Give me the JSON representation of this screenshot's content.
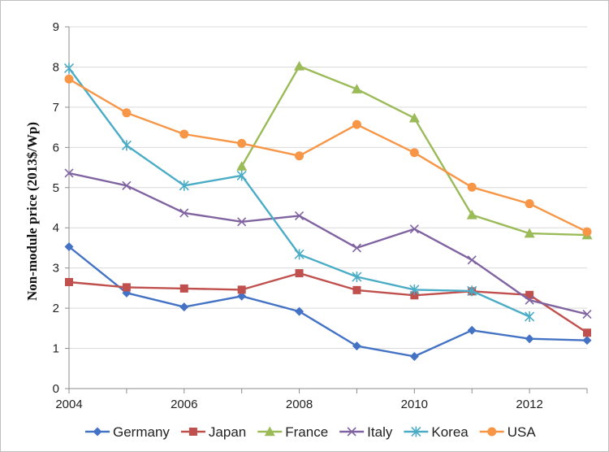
{
  "chart_data": {
    "type": "line",
    "title": "",
    "xlabel": "",
    "ylabel": "Non-module price (2013$/Wp)",
    "xlim": [
      2004,
      2013
    ],
    "ylim": [
      0,
      9
    ],
    "x_ticks": [
      2004,
      2006,
      2008,
      2010,
      2012
    ],
    "y_ticks": [
      0,
      1,
      2,
      3,
      4,
      5,
      6,
      7,
      8,
      9
    ],
    "grid": "horizontal",
    "legend_position": "bottom",
    "x": [
      2004,
      2005,
      2006,
      2007,
      2008,
      2009,
      2010,
      2011,
      2012,
      2013
    ],
    "series": [
      {
        "name": "Germany",
        "color": "#4472C4",
        "marker": "diamond",
        "values": [
          3.53,
          2.38,
          2.03,
          2.3,
          1.92,
          1.06,
          0.8,
          1.45,
          1.24,
          1.2
        ]
      },
      {
        "name": "Japan",
        "color": "#C0504D",
        "marker": "square",
        "values": [
          2.65,
          2.52,
          2.49,
          2.46,
          2.87,
          2.45,
          2.32,
          2.42,
          2.33,
          1.39
        ]
      },
      {
        "name": "France",
        "color": "#9BBB59",
        "marker": "triangle",
        "values": [
          null,
          null,
          null,
          5.53,
          8.02,
          7.45,
          6.73,
          4.32,
          3.86,
          3.82
        ]
      },
      {
        "name": "Italy",
        "color": "#8064A2",
        "marker": "x",
        "values": [
          5.36,
          5.05,
          4.37,
          4.15,
          4.3,
          3.5,
          3.97,
          3.2,
          2.2,
          1.85
        ]
      },
      {
        "name": "Korea",
        "color": "#4BACC6",
        "marker": "star",
        "values": [
          7.97,
          6.05,
          5.05,
          5.3,
          3.34,
          2.78,
          2.46,
          2.43,
          1.79,
          null
        ]
      },
      {
        "name": "USA",
        "color": "#F79646",
        "marker": "circle",
        "values": [
          7.7,
          6.86,
          6.33,
          6.1,
          5.79,
          6.57,
          5.87,
          5.01,
          4.6,
          3.9
        ]
      }
    ]
  }
}
